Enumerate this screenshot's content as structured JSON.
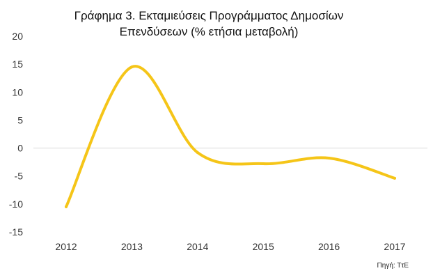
{
  "chart_data": {
    "type": "line",
    "title_line1": "Γράφημα 3. Εκταμιεύσεις Προγράμματος  Δημοσίων",
    "title_line2": "Επενδύσεων  (% ετήσια μεταβολή)",
    "source": "Πηγή: ΤτΕ",
    "x": [
      "2012",
      "2013",
      "2014",
      "2015",
      "2016",
      "2017"
    ],
    "series": [
      {
        "values": [
          -10.5,
          14.5,
          -0.8,
          -2.8,
          -1.8,
          -5.4
        ]
      }
    ],
    "xlabel": "",
    "ylabel": "",
    "ylim": [
      -15,
      20
    ],
    "yticks": [
      "20",
      "15",
      "10",
      "5",
      "0",
      "-5",
      "-10",
      "-15"
    ],
    "grid": false,
    "zero_line": true,
    "smooth": true,
    "colors": {
      "line": "#F5C518",
      "zero_line": "#d9d9d9"
    }
  }
}
